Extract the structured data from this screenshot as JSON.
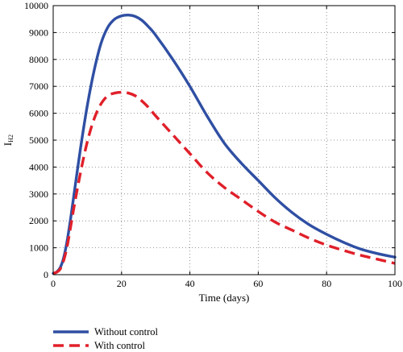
{
  "chart_data": {
    "type": "line",
    "xlabel": "Time (days)",
    "ylabel": "I",
    "ylabel_subscript": "H2",
    "xlim": [
      0,
      100
    ],
    "ylim": [
      0,
      10000
    ],
    "xticks": [
      0,
      20,
      40,
      60,
      80,
      100
    ],
    "yticks": [
      0,
      1000,
      2000,
      3000,
      4000,
      5000,
      6000,
      7000,
      8000,
      9000,
      10000
    ],
    "grid": true,
    "legend_position": "bottom-left, below plot",
    "series": [
      {
        "name": "Without control",
        "color": "#2f4fa3",
        "style": "solid",
        "x": [
          0,
          1,
          2,
          3,
          4,
          5,
          6,
          8,
          10,
          12,
          14,
          16,
          18,
          20,
          22,
          24,
          26,
          28,
          30,
          35,
          40,
          45,
          50,
          55,
          60,
          65,
          70,
          75,
          80,
          85,
          90,
          95,
          100
        ],
        "y": [
          50,
          100,
          250,
          600,
          1200,
          2000,
          2900,
          4700,
          6300,
          7600,
          8600,
          9200,
          9500,
          9620,
          9650,
          9600,
          9450,
          9200,
          8900,
          8000,
          7000,
          5900,
          4900,
          4150,
          3500,
          2850,
          2300,
          1850,
          1500,
          1200,
          950,
          780,
          650
        ]
      },
      {
        "name": "With control",
        "color": "#e0202a",
        "style": "dashed",
        "x": [
          0,
          1,
          2,
          3,
          4,
          5,
          6,
          8,
          10,
          12,
          14,
          16,
          18,
          20,
          22,
          24,
          26,
          28,
          30,
          35,
          40,
          45,
          50,
          55,
          60,
          65,
          70,
          75,
          80,
          85,
          90,
          95,
          100
        ],
        "y": [
          50,
          90,
          200,
          500,
          1000,
          1700,
          2450,
          3800,
          4950,
          5800,
          6350,
          6650,
          6750,
          6780,
          6750,
          6650,
          6450,
          6200,
          5900,
          5200,
          4500,
          3800,
          3250,
          2800,
          2350,
          1950,
          1650,
          1350,
          1100,
          900,
          720,
          570,
          420
        ]
      }
    ]
  }
}
